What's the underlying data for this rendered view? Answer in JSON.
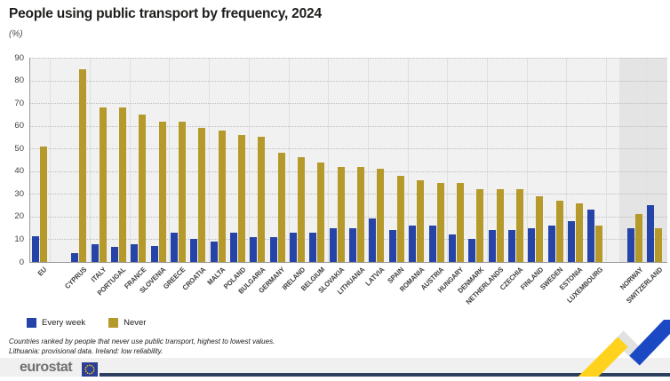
{
  "header": {
    "title": "People using public transport by frequency, 2024",
    "subtitle": "(%)"
  },
  "legend": [
    {
      "label": "Every week",
      "color": "#2644a7"
    },
    {
      "label": "Never",
      "color": "#b5992b"
    }
  ],
  "footnotes": [
    "Countries ranked by people that never use public transport, highest to lowest values.",
    "Lithuania: provisional data. Ireland: low reliability."
  ],
  "branding": {
    "logo_text": "eurostat"
  },
  "chart_data": {
    "type": "bar",
    "title": "People using public transport by frequency, 2024",
    "units": "%",
    "xlabel": "",
    "ylabel": "(%)",
    "ylim": [
      0,
      90
    ],
    "ytick_step": 10,
    "grid": "horizontal-dotted",
    "legend_position": "bottom-left",
    "categories": [
      "EU",
      "CYPRUS",
      "ITALY",
      "PORTUGAL",
      "FRANCE",
      "SLOVENIA",
      "GREECE",
      "CROATIA",
      "MALTA",
      "POLAND",
      "BULGARIA",
      "GERMANY",
      "IRELAND",
      "BELGIUM",
      "SLOVAKIA",
      "LITHUANIA",
      "LATVIA",
      "SPAIN",
      "ROMANIA",
      "AUSTRIA",
      "HUNGARY",
      "DENMARK",
      "NETHERLANDS",
      "CZECHIA",
      "FINLAND",
      "SWEDEN",
      "ESTONIA",
      "LUXEMBOURG",
      "NORWAY",
      "SWITZERLAND"
    ],
    "series": [
      {
        "name": "Every week",
        "color": "#2644a7",
        "values": [
          11.5,
          4,
          8,
          6.5,
          8,
          7,
          13,
          10,
          9,
          13,
          11,
          11,
          13,
          13,
          15,
          15,
          19,
          14,
          16,
          16,
          12,
          10,
          14,
          14,
          15,
          16,
          18,
          23,
          15,
          25
        ]
      },
      {
        "name": "Never",
        "color": "#b5992b",
        "values": [
          51,
          85,
          68,
          68,
          65,
          62,
          62,
          59,
          58,
          56,
          55,
          48,
          46,
          44,
          42,
          42,
          41,
          38,
          36,
          35,
          35,
          32,
          32,
          32,
          29,
          27,
          26,
          16,
          21,
          15
        ]
      }
    ],
    "group_gaps_after": [
      "EU",
      "LUXEMBOURG"
    ],
    "highlight_band_categories": [
      "NORWAY",
      "SWITZERLAND"
    ]
  }
}
